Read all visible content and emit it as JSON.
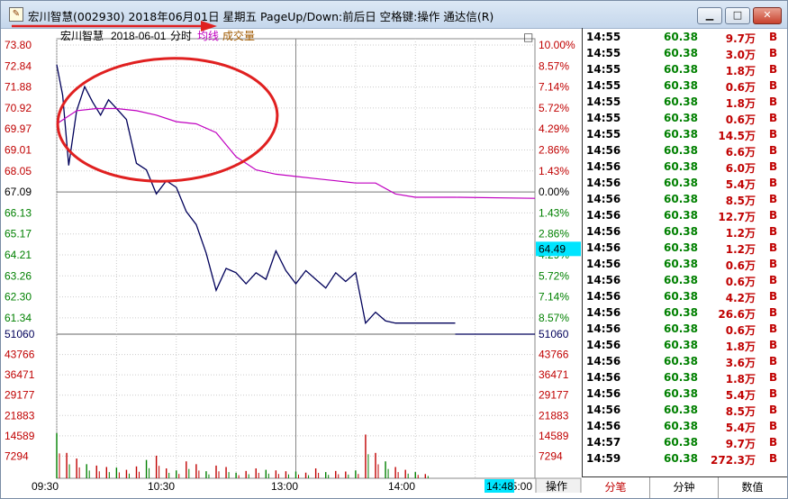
{
  "window": {
    "title": "宏川智慧(002930) 2018年06月01日 星期五 PageUp/Down:前后日 空格键:操作 通达信(R)",
    "icon": "document-icon",
    "buttons": {
      "minimize": "▁",
      "maximize": "□",
      "close": "✕"
    }
  },
  "chart_header": {
    "stock_name": "宏川智慧",
    "date": "2018-06-01",
    "mode": "分时",
    "avg_line_label": "均线",
    "volume_label": "成交量",
    "toggle_icon": "□"
  },
  "price_axis": {
    "left_labels": [
      "73.80",
      "72.84",
      "71.88",
      "70.92",
      "69.97",
      "69.01",
      "68.05",
      "67.09",
      "66.13",
      "65.17",
      "64.21",
      "63.26",
      "62.30",
      "61.34"
    ],
    "right_labels": [
      "10.00%",
      "8.57%",
      "7.14%",
      "5.72%",
      "4.29%",
      "2.86%",
      "1.43%",
      "0.00%",
      "1.43%",
      "2.86%",
      "4.29%",
      "5.72%",
      "7.14%",
      "8.57%"
    ],
    "current_price_tag": "64.49"
  },
  "volume_axis": {
    "labels": [
      "51060",
      "43766",
      "36471",
      "29177",
      "21883",
      "14589",
      "7294"
    ]
  },
  "time_axis": {
    "labels": [
      "09:30",
      "10:30",
      "13:00",
      "14:00",
      "15:00"
    ],
    "cursor_time": "14:48",
    "ops_button": "操作"
  },
  "chart_data": {
    "type": "line",
    "xlabel": "",
    "ylabel": "",
    "ylim": [
      61.34,
      73.8
    ],
    "prev_close": 67.09,
    "x_range": [
      "09:30",
      "15:00"
    ],
    "series": [
      {
        "name": "分时",
        "color": "#00005a",
        "x": [
          "09:30",
          "09:33",
          "09:36",
          "09:40",
          "09:44",
          "09:48",
          "09:52",
          "09:56",
          "10:00",
          "10:05",
          "10:10",
          "10:15",
          "10:20",
          "10:25",
          "10:30",
          "10:35",
          "10:40",
          "10:45",
          "10:50",
          "10:55",
          "11:00",
          "11:05",
          "11:10",
          "11:15",
          "11:20",
          "11:25",
          "11:30",
          "13:05",
          "13:10",
          "13:15",
          "13:20",
          "13:25",
          "13:30",
          "13:35",
          "13:40",
          "13:45",
          "13:50",
          "13:55",
          "14:00",
          "14:05",
          "14:10",
          "14:15",
          "14:20"
        ],
        "values": [
          72.9,
          71.5,
          68.3,
          70.8,
          71.9,
          71.2,
          70.6,
          71.3,
          70.9,
          70.4,
          68.4,
          68.1,
          67.0,
          67.6,
          67.3,
          66.2,
          65.6,
          64.3,
          62.6,
          63.6,
          63.4,
          62.9,
          63.4,
          63.1,
          64.4,
          63.5,
          62.9,
          63.5,
          63.1,
          62.7,
          63.4,
          63.0,
          63.4,
          61.1,
          61.6,
          61.2,
          61.1,
          61.1,
          61.1,
          61.1,
          61.1,
          61.1,
          61.1
        ]
      },
      {
        "name": "均线",
        "color": "#c000c0",
        "x": [
          "09:30",
          "09:40",
          "09:50",
          "10:00",
          "10:10",
          "10:20",
          "10:30",
          "10:40",
          "10:50",
          "11:00",
          "11:10",
          "11:20",
          "11:30",
          "13:10",
          "13:20",
          "13:30",
          "13:40",
          "13:50",
          "14:00",
          "14:10",
          "14:20",
          "15:00"
        ],
        "values": [
          70.2,
          70.8,
          70.9,
          70.9,
          70.8,
          70.6,
          70.3,
          70.2,
          69.8,
          68.7,
          68.1,
          67.9,
          67.8,
          67.7,
          67.6,
          67.5,
          67.5,
          67.0,
          66.85,
          66.85,
          66.85,
          66.8
        ]
      }
    ],
    "volume": {
      "name": "成交量",
      "ylim": [
        0,
        51060
      ],
      "x": [
        "09:30",
        "09:35",
        "09:40",
        "09:45",
        "09:50",
        "09:55",
        "10:00",
        "10:05",
        "10:10",
        "10:15",
        "10:20",
        "10:25",
        "10:30",
        "10:35",
        "10:40",
        "10:45",
        "10:50",
        "10:55",
        "11:00",
        "11:05",
        "11:10",
        "11:15",
        "11:20",
        "11:25",
        "11:30",
        "13:05",
        "13:10",
        "13:15",
        "13:20",
        "13:25",
        "13:30",
        "13:35",
        "13:40",
        "13:45",
        "13:50",
        "13:55",
        "14:00",
        "14:05"
      ],
      "values": [
        16000,
        9000,
        7000,
        5000,
        4500,
        4000,
        3800,
        3000,
        4200,
        6500,
        8000,
        3500,
        2800,
        6000,
        5000,
        2500,
        4500,
        4000,
        2000,
        2600,
        3500,
        3000,
        2800,
        2500,
        2400,
        2000,
        3500,
        2200,
        2600,
        2400,
        2800,
        15500,
        9000,
        6000,
        4000,
        3000,
        2200,
        1500
      ]
    }
  },
  "annotations": {
    "red_arrow": true,
    "red_ellipse": true
  },
  "trades": [
    {
      "time": "14:55",
      "price": "60.38",
      "vol": "9.7万",
      "bs": "B"
    },
    {
      "time": "14:55",
      "price": "60.38",
      "vol": "3.0万",
      "bs": "B"
    },
    {
      "time": "14:55",
      "price": "60.38",
      "vol": "1.8万",
      "bs": "B"
    },
    {
      "time": "14:55",
      "price": "60.38",
      "vol": "0.6万",
      "bs": "B"
    },
    {
      "time": "14:55",
      "price": "60.38",
      "vol": "1.8万",
      "bs": "B"
    },
    {
      "time": "14:55",
      "price": "60.38",
      "vol": "0.6万",
      "bs": "B"
    },
    {
      "time": "14:55",
      "price": "60.38",
      "vol": "14.5万",
      "bs": "B"
    },
    {
      "time": "14:56",
      "price": "60.38",
      "vol": "6.6万",
      "bs": "B"
    },
    {
      "time": "14:56",
      "price": "60.38",
      "vol": "6.0万",
      "bs": "B"
    },
    {
      "time": "14:56",
      "price": "60.38",
      "vol": "5.4万",
      "bs": "B"
    },
    {
      "time": "14:56",
      "price": "60.38",
      "vol": "8.5万",
      "bs": "B"
    },
    {
      "time": "14:56",
      "price": "60.38",
      "vol": "12.7万",
      "bs": "B"
    },
    {
      "time": "14:56",
      "price": "60.38",
      "vol": "1.2万",
      "bs": "B"
    },
    {
      "time": "14:56",
      "price": "60.38",
      "vol": "1.2万",
      "bs": "B"
    },
    {
      "time": "14:56",
      "price": "60.38",
      "vol": "0.6万",
      "bs": "B"
    },
    {
      "time": "14:56",
      "price": "60.38",
      "vol": "0.6万",
      "bs": "B"
    },
    {
      "time": "14:56",
      "price": "60.38",
      "vol": "4.2万",
      "bs": "B"
    },
    {
      "time": "14:56",
      "price": "60.38",
      "vol": "26.6万",
      "bs": "B"
    },
    {
      "time": "14:56",
      "price": "60.38",
      "vol": "0.6万",
      "bs": "B"
    },
    {
      "time": "14:56",
      "price": "60.38",
      "vol": "1.8万",
      "bs": "B"
    },
    {
      "time": "14:56",
      "price": "60.38",
      "vol": "3.6万",
      "bs": "B"
    },
    {
      "time": "14:56",
      "price": "60.38",
      "vol": "1.8万",
      "bs": "B"
    },
    {
      "time": "14:56",
      "price": "60.38",
      "vol": "5.4万",
      "bs": "B"
    },
    {
      "time": "14:56",
      "price": "60.38",
      "vol": "8.5万",
      "bs": "B"
    },
    {
      "time": "14:56",
      "price": "60.38",
      "vol": "5.4万",
      "bs": "B"
    },
    {
      "time": "14:57",
      "price": "60.38",
      "vol": "9.7万",
      "bs": "B"
    },
    {
      "time": "14:59",
      "price": "60.38",
      "vol": "272.3万",
      "bs": "B"
    }
  ],
  "bottom_tabs": [
    "分笔",
    "分钟",
    "数值"
  ],
  "colors": {
    "up": "#c00000",
    "down": "#008000",
    "price_line": "#00005a",
    "avg_line": "#c000c0",
    "annotation": "#e02020",
    "cursor_tag": "#00e5ff"
  }
}
